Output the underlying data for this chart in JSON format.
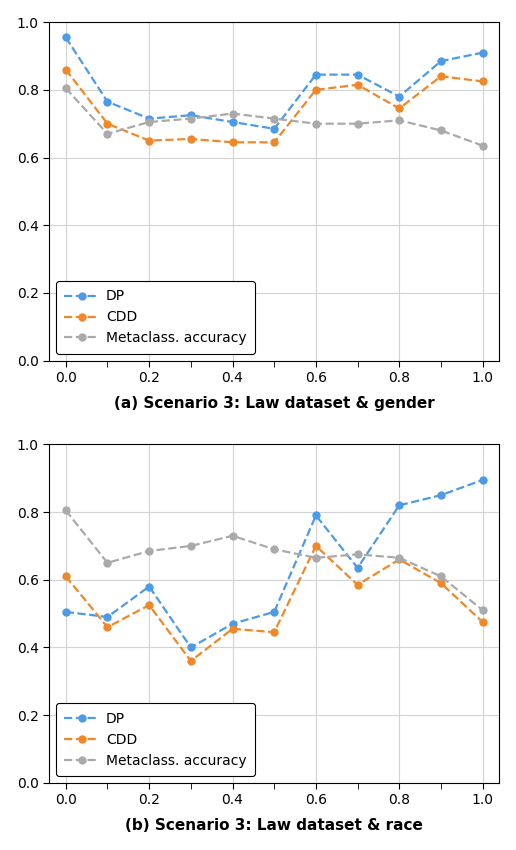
{
  "x": [
    0.0,
    0.1,
    0.2,
    0.3,
    0.4,
    0.5,
    0.6,
    0.7,
    0.8,
    0.9,
    1.0
  ],
  "top_dp": [
    0.955,
    0.765,
    0.715,
    0.725,
    0.705,
    0.685,
    0.845,
    0.845,
    0.78,
    0.885,
    0.91
  ],
  "top_cdd": [
    0.86,
    0.7,
    0.65,
    0.655,
    0.645,
    0.645,
    0.8,
    0.815,
    0.745,
    0.84,
    0.825
  ],
  "top_meta": [
    0.805,
    0.67,
    0.705,
    0.715,
    0.73,
    0.715,
    0.7,
    0.7,
    0.71,
    0.68,
    0.635
  ],
  "bot_dp": [
    0.505,
    0.49,
    0.58,
    0.4,
    0.47,
    0.505,
    0.79,
    0.635,
    0.82,
    0.85,
    0.895
  ],
  "bot_cdd": [
    0.61,
    0.46,
    0.525,
    0.36,
    0.455,
    0.445,
    0.7,
    0.585,
    0.66,
    0.59,
    0.475
  ],
  "bot_meta": [
    0.805,
    0.65,
    0.685,
    0.7,
    0.73,
    0.69,
    0.665,
    0.675,
    0.665,
    0.61,
    0.51
  ],
  "color_dp": "#4C9BE8",
  "color_cdd": "#F0882A",
  "color_meta": "#AAAAAA",
  "title_top": "(a) Scenario 3: Law dataset & gender",
  "title_bot": "(b) Scenario 3: Law dataset & race",
  "legend_dp": "DP",
  "legend_cdd": "CDD",
  "legend_meta": "Metaclass. accuracy",
  "ylim": [
    0.0,
    1.0
  ],
  "yticks_major": [
    0.0,
    0.2,
    0.4,
    0.6,
    0.8,
    1.0
  ],
  "xticks_major": [
    0.0,
    0.2,
    0.4,
    0.6,
    0.8,
    1.0
  ],
  "xticks_minor": [
    0.1,
    0.3,
    0.5,
    0.7,
    0.9
  ]
}
